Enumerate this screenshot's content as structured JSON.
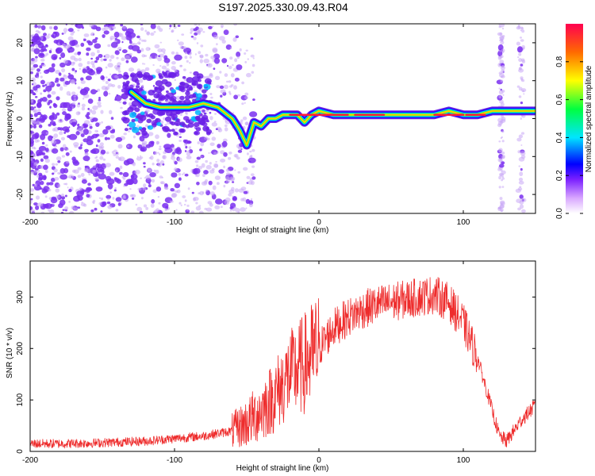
{
  "figure_title": "S197.2025.330.09.43.R04",
  "colors": {
    "snr_line": "#ee2c2c",
    "spectrogram_dot": "#7a2ff0",
    "spectrogram_dot_faint": "#c9a8f5",
    "axis": "#000000"
  },
  "chart_data": [
    {
      "type": "heatmap",
      "title": "",
      "xlabel": "Height of straight line (km)",
      "ylabel": "Frequency (Hz)",
      "xlim": [
        -200,
        150
      ],
      "ylim": [
        -25,
        25
      ],
      "xticks": [
        -200,
        -100,
        0,
        100
      ],
      "yticks": [
        -20,
        -10,
        0,
        10,
        20
      ],
      "colorbar": {
        "label": "Normalized spectral amplitude",
        "range": [
          0,
          1
        ],
        "ticks": [
          "0.0",
          "0.2",
          "0.4",
          "0.6",
          "0.8"
        ],
        "tick_values": [
          0.0,
          0.2,
          0.4,
          0.6,
          0.8
        ],
        "colormap": "rainbow"
      },
      "ridge": {
        "x": [
          -130,
          -120,
          -110,
          -100,
          -90,
          -80,
          -70,
          -60,
          -55,
          -50,
          -45,
          -40,
          -35,
          -30,
          -25,
          -20,
          -15,
          -10,
          -5,
          0,
          10,
          20,
          40,
          60,
          80,
          90,
          100,
          110,
          120,
          130,
          140,
          150
        ],
        "y": [
          7,
          4,
          3,
          3,
          3,
          4,
          3,
          0,
          -3,
          -7,
          -1,
          -2,
          0,
          0,
          1,
          1,
          1,
          -1,
          1,
          2,
          1,
          1,
          1,
          1,
          1,
          2,
          1,
          1,
          2,
          2,
          2,
          2
        ]
      }
    },
    {
      "type": "line",
      "title": "",
      "xlabel": "Height of straight line (km)",
      "ylabel": "SNR (10 * v/v)",
      "xlim": [
        -200,
        150
      ],
      "ylim": [
        0,
        370
      ],
      "xticks": [
        -200,
        -100,
        0,
        100
      ],
      "yticks": [
        0,
        100,
        200,
        300
      ],
      "series": [
        {
          "name": "SNR",
          "x": [
            -200,
            -180,
            -160,
            -140,
            -120,
            -100,
            -80,
            -70,
            -60,
            -50,
            -40,
            -30,
            -20,
            -15,
            -10,
            0,
            10,
            20,
            30,
            40,
            50,
            60,
            70,
            80,
            90,
            100,
            110,
            120,
            125,
            130,
            140,
            150
          ],
          "y": [
            15,
            15,
            16,
            18,
            20,
            25,
            30,
            35,
            40,
            55,
            80,
            110,
            150,
            160,
            170,
            200,
            240,
            260,
            275,
            285,
            290,
            295,
            300,
            305,
            290,
            250,
            180,
            80,
            30,
            20,
            60,
            90
          ]
        }
      ]
    }
  ]
}
